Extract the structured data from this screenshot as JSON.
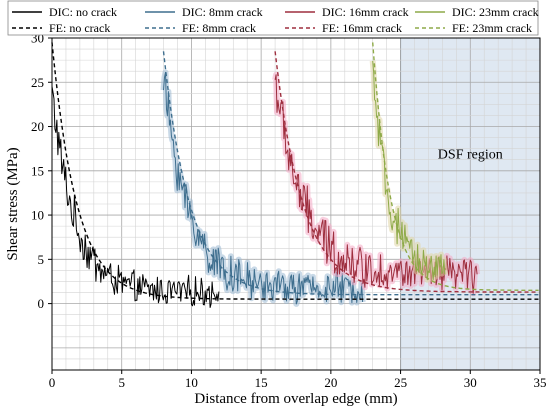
{
  "chart_data": {
    "type": "line",
    "title": "",
    "xlabel": "Distance from overlap edge (mm)",
    "ylabel": "Shear stress (MPa)",
    "xlim": [
      0,
      35
    ],
    "ylim": [
      -7.5,
      30
    ],
    "x_ticks": [
      0,
      5,
      10,
      15,
      20,
      25,
      30,
      35
    ],
    "y_ticks": [
      0,
      5,
      10,
      15,
      20,
      25,
      30
    ],
    "grid": true,
    "legend_position": "top",
    "shaded_region": {
      "label": "DSF region",
      "x_start": 25,
      "x_end": 35,
      "color": "#dfe8f2"
    },
    "series": [
      {
        "name": "DIC: no crack",
        "style": "solid",
        "color": "#000000",
        "glow": "",
        "crack_mm": 0,
        "peak": 24,
        "floor": 1.3,
        "decay_mm": 1.6,
        "end_mm": 12,
        "noise": 1.5
      },
      {
        "name": "DIC: 8mm crack",
        "style": "solid",
        "color": "#3e6e8e",
        "glow": "#9dbad3",
        "crack_mm": 8,
        "peak": 25.5,
        "floor": 1.7,
        "decay_mm": 1.8,
        "end_mm": 22.3,
        "noise": 1.6
      },
      {
        "name": "DIC: 16mm crack",
        "style": "solid",
        "color": "#9e2e3e",
        "glow": "#f4a8c4",
        "crack_mm": 16,
        "peak": 25.5,
        "floor": 3.2,
        "decay_mm": 2.0,
        "end_mm": 30.5,
        "noise": 1.8
      },
      {
        "name": "DIC: 23mm crack",
        "style": "solid",
        "color": "#8eaa48",
        "glow": "#e0d6a6",
        "crack_mm": 23,
        "peak": 26.5,
        "floor": 3.8,
        "decay_mm": 1.1,
        "end_mm": 28.2,
        "noise": 1.5
      },
      {
        "name": "FE: no crack",
        "style": "dashed",
        "color": "#000000",
        "crack_mm": 0,
        "peak": 29.5,
        "floor": 0.5,
        "decay_mm": 1.8,
        "end_mm": 35
      },
      {
        "name": "FE: 8mm crack",
        "style": "dashed",
        "color": "#3e6e8e",
        "crack_mm": 8,
        "peak": 28.5,
        "floor": 1.0,
        "decay_mm": 1.9,
        "end_mm": 35
      },
      {
        "name": "FE: 16mm crack",
        "style": "dashed",
        "color": "#9e2e3e",
        "crack_mm": 16,
        "peak": 28.5,
        "floor": 1.3,
        "decay_mm": 2.0,
        "end_mm": 35
      },
      {
        "name": "FE: 23mm crack",
        "style": "dashed",
        "color": "#8eaa48",
        "crack_mm": 23,
        "peak": 29.5,
        "floor": 1.5,
        "decay_mm": 1.3,
        "end_mm": 35
      }
    ]
  }
}
